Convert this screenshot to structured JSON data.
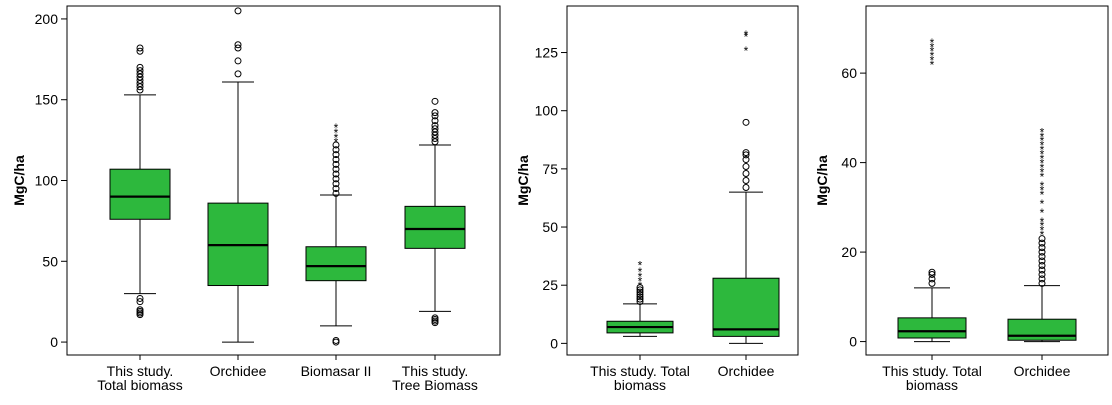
{
  "colors": {
    "box_fill": "#2db83d",
    "stroke": "#000000",
    "background": "#ffffff"
  },
  "chart_data": [
    {
      "type": "boxplot",
      "ylabel": "MgC/ha",
      "ylim": [
        -8,
        208
      ],
      "yticks": [
        0,
        50,
        100,
        150,
        200
      ],
      "categories": [
        {
          "label": [
            "This study.",
            "Total biomass"
          ],
          "whisker_low": 30,
          "q1": 76,
          "median": 90,
          "q3": 107,
          "whisker_high": 153,
          "outliers_circle": [
            17,
            18,
            19,
            20,
            25,
            27,
            156,
            158,
            160,
            162,
            164,
            166,
            168,
            170,
            180,
            182
          ],
          "outliers_star": []
        },
        {
          "label": [
            "Orchidee"
          ],
          "whisker_low": 0,
          "q1": 35,
          "median": 60,
          "q3": 86,
          "whisker_high": 161,
          "outliers_circle": [
            166,
            174,
            182,
            184,
            205
          ],
          "outliers_star": []
        },
        {
          "label": [
            "Biomasar II"
          ],
          "whisker_low": 10,
          "q1": 38,
          "median": 47,
          "q3": 59,
          "whisker_high": 91,
          "outliers_circle": [
            0,
            1,
            92,
            95,
            98,
            101,
            104,
            107,
            110,
            113,
            116,
            119,
            122
          ],
          "outliers_star": [
            124,
            127,
            130,
            133
          ]
        },
        {
          "label": [
            "This study.",
            "Tree Biomass"
          ],
          "whisker_low": 19,
          "q1": 58,
          "median": 70,
          "q3": 84,
          "whisker_high": 122,
          "outliers_circle": [
            12,
            13,
            14,
            15,
            124,
            126,
            128,
            130,
            132,
            134,
            137,
            140,
            142,
            149
          ],
          "outliers_star": []
        }
      ]
    },
    {
      "type": "boxplot",
      "ylabel": "MgC/ha",
      "ylim": [
        -5,
        145
      ],
      "yticks": [
        0,
        25,
        50,
        75,
        100,
        125
      ],
      "categories": [
        {
          "label": [
            "This study. Total",
            "biomass"
          ],
          "whisker_low": 3,
          "q1": 4.5,
          "median": 7,
          "q3": 9.5,
          "whisker_high": 17,
          "outliers_circle": [
            18,
            19,
            20,
            21,
            22,
            23,
            24
          ],
          "outliers_star": [
            25,
            27,
            29,
            31,
            34
          ]
        },
        {
          "label": [
            "Orchidee"
          ],
          "whisker_low": 0,
          "q1": 3,
          "median": 6,
          "q3": 28,
          "whisker_high": 65,
          "outliers_circle": [
            67,
            70,
            73,
            76,
            79,
            81,
            82,
            95
          ],
          "outliers_star": [
            126,
            132,
            133
          ]
        }
      ]
    },
    {
      "type": "boxplot",
      "ylabel": "MgC/ha",
      "ylim": [
        -3,
        75
      ],
      "yticks": [
        0,
        20,
        40,
        60
      ],
      "categories": [
        {
          "label": [
            "This study. Total",
            "biomass"
          ],
          "whisker_low": 0,
          "q1": 0.8,
          "median": 2.3,
          "q3": 5.3,
          "whisker_high": 12,
          "outliers_circle": [
            13,
            14,
            15,
            15.5
          ],
          "outliers_star": [
            62,
            63,
            64,
            65,
            66,
            67
          ]
        },
        {
          "label": [
            "Orchidee"
          ],
          "whisker_low": 0,
          "q1": 0.3,
          "median": 1.3,
          "q3": 5,
          "whisker_high": 12.5,
          "outliers_circle": [
            13,
            14,
            15,
            16,
            17,
            18,
            19,
            20,
            21,
            22,
            23
          ],
          "outliers_star": [
            24,
            25,
            26,
            27,
            29,
            31,
            33,
            34,
            35,
            37,
            38,
            39,
            40,
            41,
            42,
            43,
            44,
            45,
            46,
            47
          ]
        }
      ]
    }
  ]
}
